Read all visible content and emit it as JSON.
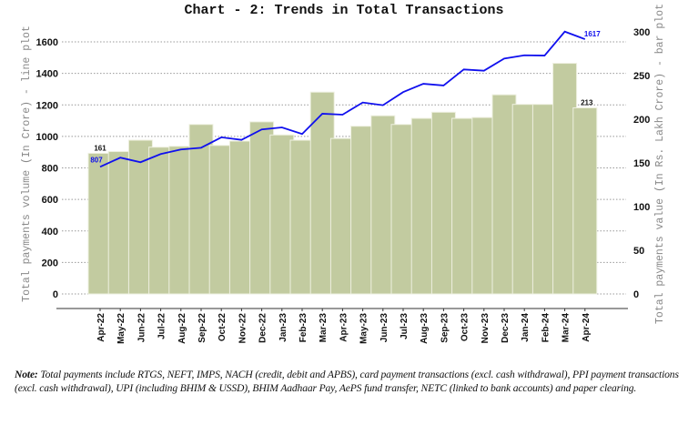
{
  "chart_data": {
    "type": "bar+line",
    "title": "Chart - 2: Trends in Total Transactions",
    "categories": [
      "Apr-22",
      "May-22",
      "Jun-22",
      "Jul-22",
      "Aug-22",
      "Sep-22",
      "Oct-22",
      "Nov-22",
      "Dec-22",
      "Jan-23",
      "Feb-23",
      "Mar-23",
      "Apr-23",
      "May-23",
      "Jun-23",
      "Jul-23",
      "Aug-23",
      "Sep-23",
      "Oct-23",
      "Nov-23",
      "Dec-23",
      "Jan-24",
      "Feb-24",
      "Mar-24",
      "Apr-24"
    ],
    "series": [
      {
        "name": "Total payments volume (In Crore) - line plot",
        "type": "line",
        "axis": "left",
        "color": "#1010ee",
        "values": [
          807,
          865,
          836,
          888,
          917,
          928,
          994,
          978,
          1044,
          1057,
          1015,
          1144,
          1138,
          1215,
          1198,
          1281,
          1334,
          1323,
          1425,
          1417,
          1494,
          1515,
          1513,
          1665,
          1617
        ]
      },
      {
        "name": "Total payments value (In Rs. Lakh Crore) - bar plot",
        "type": "bar",
        "axis": "right",
        "color": "#c2cba0",
        "values": [
          161,
          163,
          176,
          168,
          169,
          194,
          170,
          175,
          197,
          182,
          176,
          231,
          178,
          192,
          204,
          194,
          201,
          208,
          201,
          202,
          228,
          217,
          217,
          264,
          213
        ]
      }
    ],
    "ylabel": "Total payments volume (In Crore) - line plot",
    "y2label": "Total payments value (In Rs. Lakh Crore) - bar plot",
    "ylim": [
      0,
      1600
    ],
    "yticks": [
      0,
      200,
      400,
      600,
      800,
      1000,
      1200,
      1400,
      1600
    ],
    "y2lim": [
      0,
      300
    ],
    "y2ticks": [
      0,
      50,
      100,
      150,
      200,
      250,
      300
    ],
    "data_labels": {
      "bar_first": "161",
      "bar_last": "213",
      "line_first": "807",
      "line_last": "1617"
    },
    "grid": true
  },
  "note": {
    "label": "Note:",
    "text": " Total payments include RTGS, NEFT, IMPS, NACH (credit, debit and APBS), card payment transactions (excl. cash withdrawal), PPI payment transactions (excl. cash withdrawal), UPI (including BHIM & USSD), BHIM Aadhaar Pay, AePS fund transfer, NETC (linked to bank accounts) and paper clearing."
  }
}
